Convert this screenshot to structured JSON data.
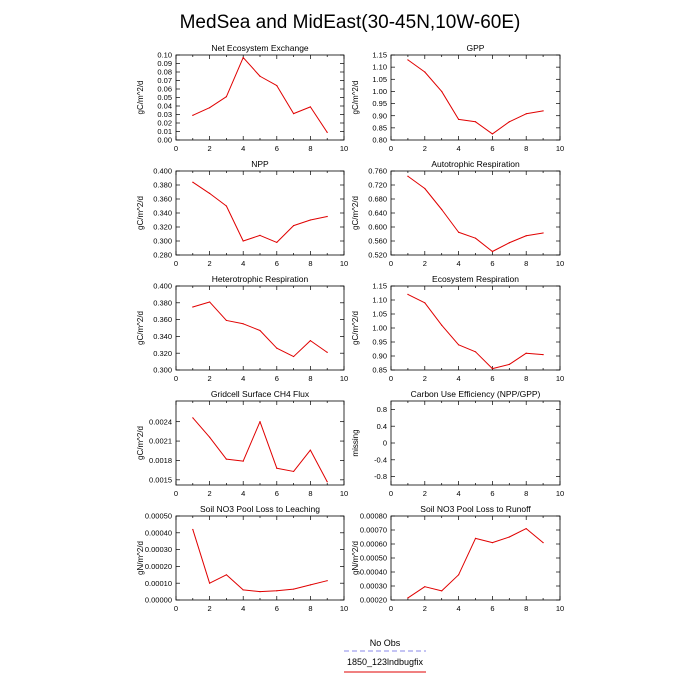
{
  "title": "MedSea and MidEast(30-45N,10W-60E)",
  "legend": [
    {
      "label": "No Obs",
      "color": "#8a8ae8",
      "dash": true
    },
    {
      "label": "1850_123lndbugfix",
      "color": "#e00000",
      "dash": false
    }
  ],
  "chart_data": [
    {
      "type": "line",
      "title": "Net Ecosystem Exchange",
      "ylabel": "gC/m^2/d",
      "xlim": [
        0,
        10
      ],
      "xticks": [
        0,
        2,
        4,
        6,
        8,
        10
      ],
      "xtick_labels": [
        "0",
        "2",
        "4",
        "6",
        "8",
        "10"
      ],
      "ylim": [
        0,
        0.1
      ],
      "yticks": [
        0,
        0.01,
        0.02,
        0.03,
        0.04,
        0.05,
        0.06,
        0.07,
        0.08,
        0.09,
        0.1
      ],
      "ytick_labels": [
        "0.00",
        "0.01",
        "0.02",
        "0.03",
        "0.04",
        "0.05",
        "0.06",
        "0.07",
        "0.08",
        "0.09",
        "0.10"
      ],
      "series": [
        {
          "name": "1850_123lndbugfix",
          "color": "#e00000",
          "x": [
            1,
            2,
            3,
            4,
            5,
            6,
            7,
            8,
            9
          ],
          "y": [
            0.029,
            0.038,
            0.051,
            0.097,
            0.075,
            0.064,
            0.031,
            0.039,
            0.009
          ]
        }
      ]
    },
    {
      "type": "line",
      "title": "GPP",
      "ylabel": "gC/m^2/d",
      "xlim": [
        0,
        10
      ],
      "xticks": [
        0,
        2,
        4,
        6,
        8,
        10
      ],
      "xtick_labels": [
        "0",
        "2",
        "4",
        "6",
        "8",
        "10"
      ],
      "ylim": [
        0.8,
        1.15
      ],
      "yticks": [
        0.8,
        0.85,
        0.9,
        0.95,
        1.0,
        1.05,
        1.1,
        1.15
      ],
      "ytick_labels": [
        "0.80",
        "0.85",
        "0.90",
        "0.95",
        "1.00",
        "1.05",
        "1.10",
        "1.15"
      ],
      "series": [
        {
          "name": "1850_123lndbugfix",
          "color": "#e00000",
          "x": [
            1,
            2,
            3,
            4,
            5,
            6,
            7,
            8,
            9
          ],
          "y": [
            1.13,
            1.08,
            1.0,
            0.885,
            0.875,
            0.825,
            0.875,
            0.908,
            0.92
          ]
        }
      ]
    },
    {
      "type": "line",
      "title": "NPP",
      "ylabel": "gC/m^2/d",
      "xlim": [
        0,
        10
      ],
      "xticks": [
        0,
        2,
        4,
        6,
        8,
        10
      ],
      "xtick_labels": [
        "0",
        "2",
        "4",
        "6",
        "8",
        "10"
      ],
      "ylim": [
        0.28,
        0.4
      ],
      "yticks": [
        0.28,
        0.3,
        0.32,
        0.34,
        0.36,
        0.38,
        0.4
      ],
      "ytick_labels": [
        "0.280",
        "0.300",
        "0.320",
        "0.340",
        "0.360",
        "0.380",
        "0.400"
      ],
      "series": [
        {
          "name": "1850_123lndbugfix",
          "color": "#e00000",
          "x": [
            1,
            2,
            3,
            4,
            5,
            6,
            7,
            8,
            9
          ],
          "y": [
            0.384,
            0.368,
            0.35,
            0.3,
            0.308,
            0.298,
            0.322,
            0.33,
            0.335
          ]
        }
      ]
    },
    {
      "type": "line",
      "title": "Autotrophic Respiration",
      "ylabel": "gC/m^2/d",
      "xlim": [
        0,
        10
      ],
      "xticks": [
        0,
        2,
        4,
        6,
        8,
        10
      ],
      "xtick_labels": [
        "0",
        "2",
        "4",
        "6",
        "8",
        "10"
      ],
      "ylim": [
        0.52,
        0.76
      ],
      "yticks": [
        0.52,
        0.56,
        0.6,
        0.64,
        0.68,
        0.72,
        0.76
      ],
      "ytick_labels": [
        "0.520",
        "0.560",
        "0.600",
        "0.640",
        "0.680",
        "0.720",
        "0.760"
      ],
      "series": [
        {
          "name": "1850_123lndbugfix",
          "color": "#e00000",
          "x": [
            1,
            2,
            3,
            4,
            5,
            6,
            7,
            8,
            9
          ],
          "y": [
            0.745,
            0.71,
            0.65,
            0.585,
            0.568,
            0.53,
            0.555,
            0.575,
            0.583
          ]
        }
      ]
    },
    {
      "type": "line",
      "title": "Heterotrophic Respiration",
      "ylabel": "gC/m^2/d",
      "xlim": [
        0,
        10
      ],
      "xticks": [
        0,
        2,
        4,
        6,
        8,
        10
      ],
      "xtick_labels": [
        "0",
        "2",
        "4",
        "6",
        "8",
        "10"
      ],
      "ylim": [
        0.3,
        0.4
      ],
      "yticks": [
        0.3,
        0.32,
        0.34,
        0.36,
        0.38,
        0.4
      ],
      "ytick_labels": [
        "0.300",
        "0.320",
        "0.340",
        "0.360",
        "0.380",
        "0.400"
      ],
      "series": [
        {
          "name": "1850_123lndbugfix",
          "color": "#e00000",
          "x": [
            1,
            2,
            3,
            4,
            5,
            6,
            7,
            8,
            9
          ],
          "y": [
            0.375,
            0.381,
            0.359,
            0.355,
            0.347,
            0.326,
            0.316,
            0.335,
            0.321
          ]
        }
      ]
    },
    {
      "type": "line",
      "title": "Ecosystem Respiration",
      "ylabel": "gC/m^2/d",
      "xlim": [
        0,
        10
      ],
      "xticks": [
        0,
        2,
        4,
        6,
        8,
        10
      ],
      "xtick_labels": [
        "0",
        "2",
        "4",
        "6",
        "8",
        "10"
      ],
      "ylim": [
        0.85,
        1.15
      ],
      "yticks": [
        0.85,
        0.9,
        0.95,
        1.0,
        1.05,
        1.1,
        1.15
      ],
      "ytick_labels": [
        "0.85",
        "0.90",
        "0.95",
        "1.00",
        "1.05",
        "1.10",
        "1.15"
      ],
      "series": [
        {
          "name": "1850_123lndbugfix",
          "color": "#e00000",
          "x": [
            1,
            2,
            3,
            4,
            5,
            6,
            7,
            8,
            9
          ],
          "y": [
            1.12,
            1.09,
            1.01,
            0.94,
            0.915,
            0.855,
            0.87,
            0.91,
            0.905
          ]
        }
      ]
    },
    {
      "type": "line",
      "title": "Gridcell Surface CH4 Flux",
      "ylabel": "gC/m^2/d",
      "xlim": [
        0,
        10
      ],
      "xticks": [
        0,
        2,
        4,
        6,
        8,
        10
      ],
      "xtick_labels": [
        "0",
        "2",
        "4",
        "6",
        "8",
        "10"
      ],
      "ylim": [
        0.00142,
        0.00272
      ],
      "yticks": [
        0.0015,
        0.0018,
        0.0021,
        0.0024
      ],
      "ytick_labels": [
        "0.0015",
        "0.0018",
        "0.0021",
        "0.0024"
      ],
      "series": [
        {
          "name": "1850_123lndbugfix",
          "color": "#e00000",
          "x": [
            1,
            2,
            3,
            4,
            5,
            6,
            7,
            8,
            9
          ],
          "y": [
            0.00246,
            0.00216,
            0.00182,
            0.00179,
            0.0024,
            0.00168,
            0.00163,
            0.00196,
            0.00147
          ]
        }
      ]
    },
    {
      "type": "line",
      "title": "Carbon Use Efficiency (NPP/GPP)",
      "ylabel": "missing",
      "xlim": [
        0,
        10
      ],
      "xticks": [
        0,
        2,
        4,
        6,
        8,
        10
      ],
      "xtick_labels": [
        "0",
        "2",
        "4",
        "6",
        "8",
        "10"
      ],
      "ylim": [
        -1,
        1
      ],
      "yticks": [
        -0.8,
        -0.4,
        0,
        0.4,
        0.8
      ],
      "ytick_labels": [
        "-0.8",
        "-0.4",
        "0",
        "0.4",
        "0.8"
      ],
      "series": []
    },
    {
      "type": "line",
      "title": "Soil NO3 Pool Loss to Leaching",
      "ylabel": "gN/m^2/d",
      "xlim": [
        0,
        10
      ],
      "xticks": [
        0,
        2,
        4,
        6,
        8,
        10
      ],
      "xtick_labels": [
        "0",
        "2",
        "4",
        "6",
        "8",
        "10"
      ],
      "ylim": [
        0,
        0.0005
      ],
      "yticks": [
        0,
        0.0001,
        0.0002,
        0.0003,
        0.0004,
        0.0005
      ],
      "ytick_labels": [
        "0.00000",
        "0.00010",
        "0.00020",
        "0.00030",
        "0.00040",
        "0.00050"
      ],
      "series": [
        {
          "name": "1850_123lndbugfix",
          "color": "#e00000",
          "x": [
            1,
            2,
            3,
            4,
            5,
            6,
            7,
            8,
            9
          ],
          "y": [
            0.00042,
            0.0001,
            0.00015,
            6e-05,
            5e-05,
            5.5e-05,
            6.5e-05,
            9e-05,
            0.000115
          ]
        }
      ]
    },
    {
      "type": "line",
      "title": "Soil NO3 Pool Loss to Runoff",
      "ylabel": "gN/m^2/d",
      "xlim": [
        0,
        10
      ],
      "xticks": [
        0,
        2,
        4,
        6,
        8,
        10
      ],
      "xtick_labels": [
        "0",
        "2",
        "4",
        "6",
        "8",
        "10"
      ],
      "ylim": [
        0.0002,
        0.0008
      ],
      "yticks": [
        0.0002,
        0.0003,
        0.0004,
        0.0005,
        0.0006,
        0.0007,
        0.0008
      ],
      "ytick_labels": [
        "0.00020",
        "0.00030",
        "0.00040",
        "0.00050",
        "0.00060",
        "0.00070",
        "0.00080"
      ],
      "series": [
        {
          "name": "1850_123lndbugfix",
          "color": "#e00000",
          "x": [
            1,
            2,
            3,
            4,
            5,
            6,
            7,
            8,
            9
          ],
          "y": [
            0.000215,
            0.000295,
            0.000265,
            0.00038,
            0.00064,
            0.00061,
            0.00065,
            0.00071,
            0.00061
          ]
        }
      ]
    }
  ]
}
